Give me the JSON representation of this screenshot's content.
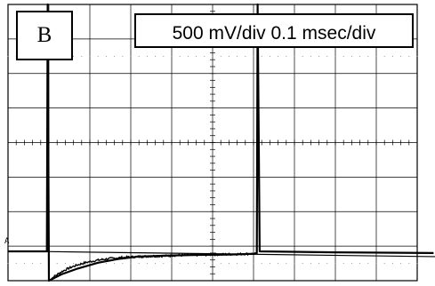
{
  "panel_label": "B",
  "scale_text": "500 mV/div  0.1 msec/div",
  "ref_marker": "A",
  "chart_data": {
    "type": "line",
    "title": "",
    "xlabel": "",
    "ylabel": "",
    "grid": true,
    "divisions": {
      "x": 10,
      "y": 8
    },
    "x_unit": "div",
    "y_unit": "div",
    "xlim": [
      0,
      10
    ],
    "ylim": [
      0,
      8
    ],
    "series": [
      {
        "name": "",
        "x": [
          0,
          0.95,
          0.97,
          1.0,
          1.3,
          1.7,
          2.2,
          2.7,
          3.2,
          4.0,
          4.5,
          5.0,
          5.5,
          6.0,
          6.08,
          6.1,
          6.15,
          8.0,
          10.4
        ],
        "y": [
          0.85,
          0.85,
          8.0,
          0.0,
          0.18,
          0.35,
          0.52,
          0.63,
          0.7,
          0.73,
          0.74,
          0.75,
          0.76,
          0.78,
          0.8,
          8.0,
          0.85,
          0.82,
          0.8
        ]
      }
    ]
  }
}
